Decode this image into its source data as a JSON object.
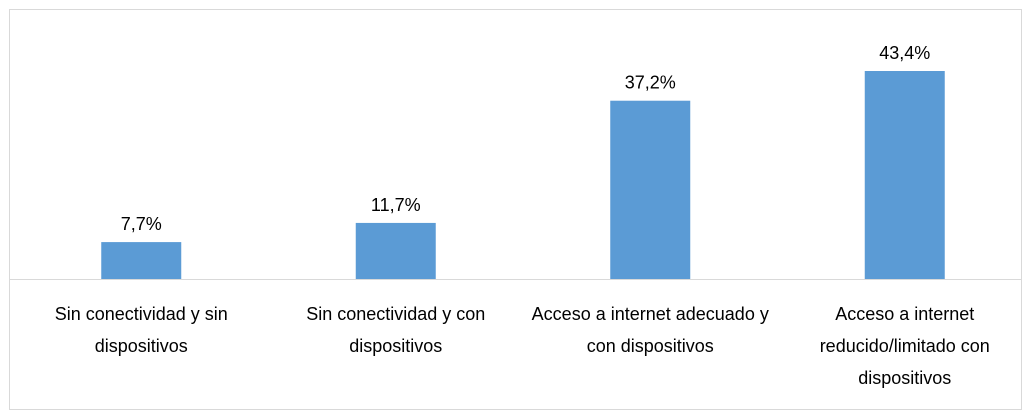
{
  "chart_data": {
    "type": "bar",
    "categories": [
      "Sin conectividad y sin dispositivos",
      "Sin conectividad y con dispositivos",
      "Acceso a internet adecuado y con dispositivos",
      "Acceso a internet reducido/limitado con dispositivos"
    ],
    "values": [
      7.7,
      11.7,
      37.2,
      43.4
    ],
    "value_labels": [
      "7,7%",
      "11,7%",
      "37,2%",
      "43,4%"
    ],
    "color": "#5b9bd5"
  }
}
